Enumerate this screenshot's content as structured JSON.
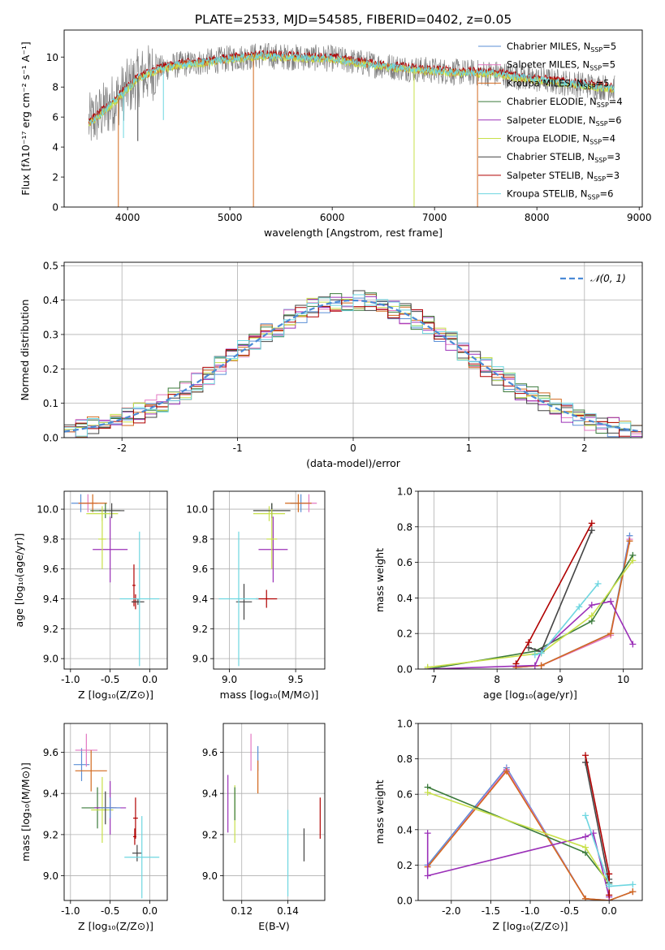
{
  "figure": {
    "title": "PLATE=2533, MJD=54585, FIBERID=0402, z=0.05"
  },
  "colors": {
    "chabrier_miles": "#5b8fd6",
    "salpeter_miles": "#e377c2",
    "kroupa_miles": "#d2691e",
    "chabrier_elodie": "#3a7a3a",
    "salpeter_elodie": "#9b30b8",
    "kroupa_elodie": "#c8e04a",
    "chabrier_stelib": "#444444",
    "salpeter_stelib": "#b00000",
    "kroupa_stelib": "#6dd6e0",
    "grid": "#b0b0b0",
    "normal": "#4a8ad6"
  },
  "chart_data": [
    {
      "id": "spectrum",
      "type": "line",
      "title": "PLATE=2533, MJD=54585, FIBERID=0402, z=0.05",
      "xlabel": "wavelength [Angstrom, rest frame]",
      "ylabel": "Flux [fλ10⁻¹⁷ erg cm⁻² s⁻¹ A⁻¹]",
      "xlim": [
        3380,
        9030
      ],
      "ylim": [
        0,
        11.8
      ],
      "xticks": [
        4000,
        5000,
        6000,
        7000,
        8000,
        9000
      ],
      "yticks": [
        0,
        2,
        4,
        6,
        8,
        10
      ],
      "grid": false,
      "legend_position": "right",
      "legend": [
        {
          "key": "chabrier_miles",
          "label": "Chabrier MILES, N",
          "sub": "SSP",
          "tail": "=5"
        },
        {
          "key": "salpeter_miles",
          "label": "Salpeter MILES, N",
          "sub": "SSP",
          "tail": "=5"
        },
        {
          "key": "kroupa_miles",
          "label": "Kroupa MILES, N",
          "sub": "SSP",
          "tail": "=5"
        },
        {
          "key": "chabrier_elodie",
          "label": "Chabrier ELODIE, N",
          "sub": "SSP",
          "tail": "=4"
        },
        {
          "key": "salpeter_elodie",
          "label": "Salpeter ELODIE, N",
          "sub": "SSP",
          "tail": "=6"
        },
        {
          "key": "kroupa_elodie",
          "label": "Kroupa ELODIE, N",
          "sub": "SSP",
          "tail": "=4"
        },
        {
          "key": "chabrier_stelib",
          "label": "Chabrier STELIB, N",
          "sub": "SSP",
          "tail": "=3"
        },
        {
          "key": "salpeter_stelib",
          "label": "Salpeter STELIB, N",
          "sub": "SSP",
          "tail": "=3"
        },
        {
          "key": "kroupa_stelib",
          "label": "Kroupa STELIB, N",
          "sub": "SSP",
          "tail": "=6"
        }
      ],
      "continuum": [
        [
          3620,
          5.6
        ],
        [
          3800,
          6.6
        ],
        [
          3950,
          7.6
        ],
        [
          4100,
          8.6
        ],
        [
          4300,
          9.2
        ],
        [
          4500,
          9.5
        ],
        [
          4800,
          9.7
        ],
        [
          5000,
          9.9
        ],
        [
          5300,
          10.1
        ],
        [
          5600,
          10.0
        ],
        [
          6000,
          9.9
        ],
        [
          6400,
          9.5
        ],
        [
          6800,
          9.2
        ],
        [
          7200,
          9.0
        ],
        [
          7600,
          8.9
        ],
        [
          8000,
          8.5
        ],
        [
          8400,
          8.2
        ],
        [
          8760,
          7.9
        ]
      ],
      "dips": [
        {
          "series": "kroupa_miles",
          "x": 3910,
          "y": 0.0
        },
        {
          "series": "kroupa_miles",
          "x": 5230,
          "y": 0.0
        },
        {
          "series": "kroupa_elodie",
          "x": 6800,
          "y": 0.0
        },
        {
          "series": "kroupa_miles",
          "x": 7420,
          "y": 0.0
        },
        {
          "series": "kroupa_stelib",
          "x": 4350,
          "y": 5.8
        },
        {
          "series": "kroupa_stelib",
          "x": 3960,
          "y": 4.6
        },
        {
          "series": "chabrier_stelib",
          "x": 4100,
          "y": 4.4
        }
      ]
    },
    {
      "id": "residuals",
      "type": "histogram",
      "xlabel": "(data-model)/error",
      "ylabel": "Normed distribution",
      "xlim": [
        -2.5,
        2.5
      ],
      "ylim": [
        0,
        0.51
      ],
      "xticks": [
        -2,
        -1,
        0,
        1,
        2
      ],
      "yticks": [
        0.0,
        0.1,
        0.2,
        0.3,
        0.4,
        0.5
      ],
      "grid": true,
      "bin_width": 0.1,
      "reference": {
        "label": "𝒩(0, 1)",
        "style": "dashed"
      },
      "legend_position": "top-right"
    },
    {
      "id": "age_vs_Z",
      "type": "errorbar",
      "xlabel": "Z [log₁₀(Z/Z⊙)]",
      "ylabel": "age  [log₁₀(age/yr)]",
      "xlim": [
        -1.08,
        0.22
      ],
      "ylim": [
        8.93,
        10.12
      ],
      "xticks": [
        -1.0,
        -0.5,
        0.0
      ],
      "yticks": [
        9.0,
        9.2,
        9.4,
        9.6,
        9.8,
        10.0
      ],
      "grid": true,
      "points": [
        {
          "series": "chabrier_miles",
          "x": -0.87,
          "xerr": 0.12,
          "y": 10.04,
          "yerr": 0.06
        },
        {
          "series": "salpeter_miles",
          "x": -0.78,
          "xerr": 0.12,
          "y": 10.04,
          "yerr": 0.06
        },
        {
          "series": "kroupa_miles",
          "x": -0.72,
          "xerr": 0.18,
          "y": 10.04,
          "yerr": 0.06
        },
        {
          "series": "chabrier_elodie",
          "x": -0.56,
          "xerr": 0.19,
          "y": 9.99,
          "yerr": 0.05
        },
        {
          "series": "kroupa_elodie",
          "x": -0.6,
          "xerr": 0.2,
          "y": 9.97,
          "yerr": 0.05
        },
        {
          "series": "chabrier_stelib",
          "x": -0.48,
          "xerr": 0.16,
          "y": 9.99,
          "yerr": 0.05
        },
        {
          "series": "salpeter_elodie",
          "x": -0.5,
          "xerr": 0.22,
          "y": 9.73,
          "yerr": 0.22
        },
        {
          "series": "kroupa_elodie",
          "x": -0.6,
          "xerr": 0.05,
          "y": 9.8,
          "yerr": 0.2
        },
        {
          "series": "salpeter_stelib",
          "x": -0.18,
          "xerr": 0.05,
          "y": 9.38,
          "yerr": 0.05
        },
        {
          "series": "salpeter_stelib",
          "x": -0.2,
          "xerr": 0.02,
          "y": 9.49,
          "yerr": 0.14
        },
        {
          "series": "chabrier_stelib",
          "x": -0.15,
          "xerr": 0.08,
          "y": 9.38,
          "yerr": 0.02
        },
        {
          "series": "kroupa_stelib",
          "x": -0.13,
          "xerr": 0.25,
          "y": 9.4,
          "yerr": 0.45
        }
      ]
    },
    {
      "id": "age_vs_mass",
      "type": "errorbar",
      "xlabel": "mass [log₁₀(M/M⊙)]",
      "ylabel": "",
      "xlim": [
        8.88,
        9.72
      ],
      "ylim": [
        8.93,
        10.12
      ],
      "xticks": [
        9.0,
        9.5
      ],
      "yticks": [
        9.0,
        9.2,
        9.4,
        9.6,
        9.8,
        10.0
      ],
      "grid": true,
      "points": [
        {
          "series": "chabrier_miles",
          "x": 9.54,
          "xerr": 0.08,
          "y": 10.04,
          "yerr": 0.06
        },
        {
          "series": "salpeter_miles",
          "x": 9.6,
          "xerr": 0.06,
          "y": 10.04,
          "yerr": 0.06
        },
        {
          "series": "kroupa_miles",
          "x": 9.52,
          "xerr": 0.1,
          "y": 10.04,
          "yerr": 0.06
        },
        {
          "series": "chabrier_elodie",
          "x": 9.32,
          "xerr": 0.14,
          "y": 9.99,
          "yerr": 0.05
        },
        {
          "series": "kroupa_elodie",
          "x": 9.3,
          "xerr": 0.12,
          "y": 9.97,
          "yerr": 0.05
        },
        {
          "series": "chabrier_stelib",
          "x": 9.32,
          "xerr": 0.14,
          "y": 9.99,
          "yerr": 0.05
        },
        {
          "series": "salpeter_elodie",
          "x": 9.33,
          "xerr": 0.11,
          "y": 9.73,
          "yerr": 0.22
        },
        {
          "series": "kroupa_elodie",
          "x": 9.32,
          "xerr": 0.04,
          "y": 9.8,
          "yerr": 0.2
        },
        {
          "series": "salpeter_stelib",
          "x": 9.28,
          "xerr": 0.08,
          "y": 9.4,
          "yerr": 0.06
        },
        {
          "series": "chabrier_stelib",
          "x": 9.11,
          "xerr": 0.06,
          "y": 9.38,
          "yerr": 0.12
        },
        {
          "series": "kroupa_stelib",
          "x": 9.07,
          "xerr": 0.15,
          "y": 9.4,
          "yerr": 0.45
        }
      ]
    },
    {
      "id": "massweight_vs_age",
      "type": "line",
      "xlabel": "age  [log₁₀(age/yr)]",
      "ylabel": "mass weight",
      "xlim": [
        6.75,
        10.3
      ],
      "ylim": [
        0,
        1.0
      ],
      "xticks": [
        7,
        8,
        9,
        10
      ],
      "yticks": [
        0.0,
        0.2,
        0.4,
        0.6,
        0.8,
        1.0
      ],
      "grid": true,
      "series": [
        {
          "series": "chabrier_miles",
          "x": [
            8.3,
            8.7,
            9.8,
            10.1
          ],
          "y": [
            0.01,
            0.02,
            0.2,
            0.75
          ]
        },
        {
          "series": "salpeter_miles",
          "x": [
            8.3,
            8.7,
            9.8,
            10.1
          ],
          "y": [
            0.01,
            0.02,
            0.19,
            0.73
          ]
        },
        {
          "series": "kroupa_miles",
          "x": [
            8.3,
            8.7,
            9.8,
            10.1
          ],
          "y": [
            0.01,
            0.02,
            0.2,
            0.72
          ]
        },
        {
          "series": "chabrier_elodie",
          "x": [
            6.9,
            8.6,
            9.5,
            10.15
          ],
          "y": [
            0.0,
            0.1,
            0.27,
            0.64
          ]
        },
        {
          "series": "salpeter_elodie",
          "x": [
            6.9,
            8.6,
            8.7,
            9.5,
            9.8,
            10.15
          ],
          "y": [
            0.0,
            0.02,
            0.1,
            0.36,
            0.38,
            0.14
          ]
        },
        {
          "series": "kroupa_elodie",
          "x": [
            6.9,
            8.7,
            9.5,
            10.15
          ],
          "y": [
            0.01,
            0.09,
            0.3,
            0.61
          ]
        },
        {
          "series": "chabrier_stelib",
          "x": [
            8.5,
            8.7,
            9.5
          ],
          "y": [
            0.12,
            0.1,
            0.78
          ]
        },
        {
          "series": "salpeter_stelib",
          "x": [
            8.3,
            8.5,
            9.5
          ],
          "y": [
            0.03,
            0.15,
            0.82
          ]
        },
        {
          "series": "kroupa_stelib",
          "x": [
            8.6,
            8.7,
            9.3,
            9.6
          ],
          "y": [
            0.08,
            0.09,
            0.35,
            0.48
          ]
        }
      ]
    },
    {
      "id": "mass_vs_Z",
      "type": "errorbar",
      "xlabel": "Z [log₁₀(Z/Z⊙)]",
      "ylabel": "mass [log₁₀(M/M⊙)]",
      "xlim": [
        -1.08,
        0.22
      ],
      "ylim": [
        8.88,
        9.74
      ],
      "xticks": [
        -1.0,
        -0.5,
        0.0
      ],
      "yticks": [
        9.0,
        9.2,
        9.4,
        9.6
      ],
      "grid": true,
      "points": [
        {
          "series": "chabrier_miles",
          "x": -0.86,
          "xerr": 0.1,
          "y": 9.54,
          "yerr": 0.08
        },
        {
          "series": "salpeter_miles",
          "x": -0.8,
          "xerr": 0.14,
          "y": 9.61,
          "yerr": 0.08
        },
        {
          "series": "kroupa_miles",
          "x": -0.74,
          "xerr": 0.2,
          "y": 9.51,
          "yerr": 0.1
        },
        {
          "series": "chabrier_elodie",
          "x": -0.66,
          "xerr": 0.2,
          "y": 9.33,
          "yerr": 0.1
        },
        {
          "series": "kroupa_elodie",
          "x": -0.6,
          "xerr": 0.14,
          "y": 9.32,
          "yerr": 0.16
        },
        {
          "series": "chabrier_stelib",
          "x": -0.56,
          "xerr": 0.14,
          "y": 9.33,
          "yerr": 0.08
        },
        {
          "series": "salpeter_elodie",
          "x": -0.5,
          "xerr": 0.2,
          "y": 9.33,
          "yerr": 0.13
        },
        {
          "series": "chabrier_miles",
          "x": -0.5,
          "xerr": 0.13,
          "y": 9.33,
          "yerr": 0.05
        },
        {
          "series": "salpeter_stelib",
          "x": -0.18,
          "xerr": 0.03,
          "y": 9.28,
          "yerr": 0.1
        },
        {
          "series": "salpeter_stelib",
          "x": -0.19,
          "xerr": 0.02,
          "y": 9.19,
          "yerr": 0.04
        },
        {
          "series": "chabrier_stelib",
          "x": -0.16,
          "xerr": 0.06,
          "y": 9.11,
          "yerr": 0.04
        },
        {
          "series": "kroupa_stelib",
          "x": -0.1,
          "xerr": 0.22,
          "y": 9.09,
          "yerr": 0.2
        }
      ]
    },
    {
      "id": "mass_vs_EBV",
      "type": "errorbar",
      "xlabel": "E(B-V)",
      "ylabel": "",
      "xlim": [
        0.112,
        0.156
      ],
      "ylim": [
        8.88,
        9.74
      ],
      "xticks": [
        0.12,
        0.14
      ],
      "yticks": [
        9.0,
        9.2,
        9.4,
        9.6
      ],
      "grid": true,
      "points": [
        {
          "series": "salpeter_elodie",
          "x": 0.114,
          "xerr": 0,
          "y": 9.35,
          "yerr": 0.14
        },
        {
          "series": "kroupa_elodie",
          "x": 0.117,
          "xerr": 0,
          "y": 9.3,
          "yerr": 0.14
        },
        {
          "series": "chabrier_elodie",
          "x": 0.117,
          "xerr": 0,
          "y": 9.35,
          "yerr": 0.08
        },
        {
          "series": "salpeter_miles",
          "x": 0.124,
          "xerr": 0,
          "y": 9.6,
          "yerr": 0.09
        },
        {
          "series": "chabrier_miles",
          "x": 0.127,
          "xerr": 0,
          "y": 9.57,
          "yerr": 0.06
        },
        {
          "series": "kroupa_miles",
          "x": 0.127,
          "xerr": 0,
          "y": 9.48,
          "yerr": 0.08
        },
        {
          "series": "kroupa_stelib",
          "x": 0.14,
          "xerr": 0,
          "y": 9.11,
          "yerr": 0.21
        },
        {
          "series": "chabrier_stelib",
          "x": 0.147,
          "xerr": 0,
          "y": 9.15,
          "yerr": 0.08
        },
        {
          "series": "salpeter_stelib",
          "x": 0.154,
          "xerr": 0,
          "y": 9.28,
          "yerr": 0.1
        }
      ]
    },
    {
      "id": "massweight_vs_Z",
      "type": "line",
      "xlabel": "Z [log₁₀(Z/Z⊙)]",
      "ylabel": "mass weight",
      "xlim": [
        -2.42,
        0.42
      ],
      "ylim": [
        0,
        1.0
      ],
      "xticks": [
        -2.0,
        -1.5,
        -1.0,
        -0.5,
        0.0
      ],
      "yticks": [
        0.0,
        0.2,
        0.4,
        0.6,
        0.8,
        1.0
      ],
      "grid": true,
      "series": [
        {
          "series": "chabrier_miles",
          "x": [
            -2.3,
            -1.3,
            -0.3,
            0.0,
            0.3
          ],
          "y": [
            0.2,
            0.75,
            0.01,
            0.0,
            0.05
          ]
        },
        {
          "series": "salpeter_miles",
          "x": [
            -2.3,
            -1.3,
            -0.3,
            0.0,
            0.3
          ],
          "y": [
            0.19,
            0.74,
            0.01,
            0.0,
            0.05
          ]
        },
        {
          "series": "kroupa_miles",
          "x": [
            -2.3,
            -1.3,
            -0.3,
            0.0,
            0.3
          ],
          "y": [
            0.19,
            0.73,
            0.01,
            0.0,
            0.05
          ]
        },
        {
          "series": "chabrier_elodie",
          "x": [
            -2.3,
            -0.3,
            0.0
          ],
          "y": [
            0.64,
            0.27,
            0.1
          ]
        },
        {
          "series": "salpeter_elodie",
          "x": [
            -2.3,
            -2.3,
            -0.3,
            -0.2,
            0.0
          ],
          "y": [
            0.38,
            0.14,
            0.36,
            0.38,
            0.02
          ]
        },
        {
          "series": "kroupa_elodie",
          "x": [
            -2.3,
            -0.3,
            0.0
          ],
          "y": [
            0.61,
            0.3,
            0.09
          ]
        },
        {
          "series": "chabrier_stelib",
          "x": [
            -0.3,
            0.0,
            0.0
          ],
          "y": [
            0.78,
            0.1,
            0.12
          ]
        },
        {
          "series": "salpeter_stelib",
          "x": [
            -0.3,
            0.0,
            0.0
          ],
          "y": [
            0.82,
            0.15,
            0.03
          ]
        },
        {
          "series": "kroupa_stelib",
          "x": [
            -0.3,
            0.0,
            0.0,
            0.3
          ],
          "y": [
            0.48,
            0.09,
            0.08,
            0.09
          ]
        }
      ]
    }
  ]
}
